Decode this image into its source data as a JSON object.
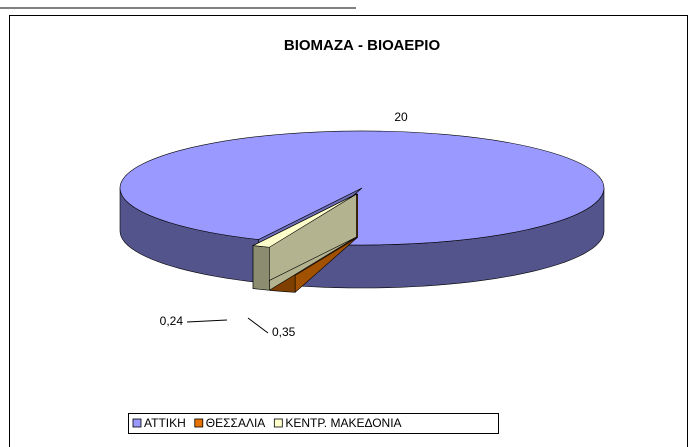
{
  "chart_data": {
    "type": "pie",
    "title": "ΒΙΟΜΑΖΑ - ΒΙΟΑΕΡΙΟ",
    "categories": [
      "ΑΤΤΙΚΗ",
      "ΘΕΣΣΑΛΙΑ",
      "ΚΕΝΤΡ. ΜΑΚΕΔΟΝΙΑ"
    ],
    "values": [
      20,
      0.35,
      0.24
    ],
    "value_labels": [
      "20",
      "0,35",
      "0,24"
    ],
    "colors": [
      "#9999ff",
      "#e67300",
      "#ffffcc"
    ],
    "legend": "bottom"
  }
}
